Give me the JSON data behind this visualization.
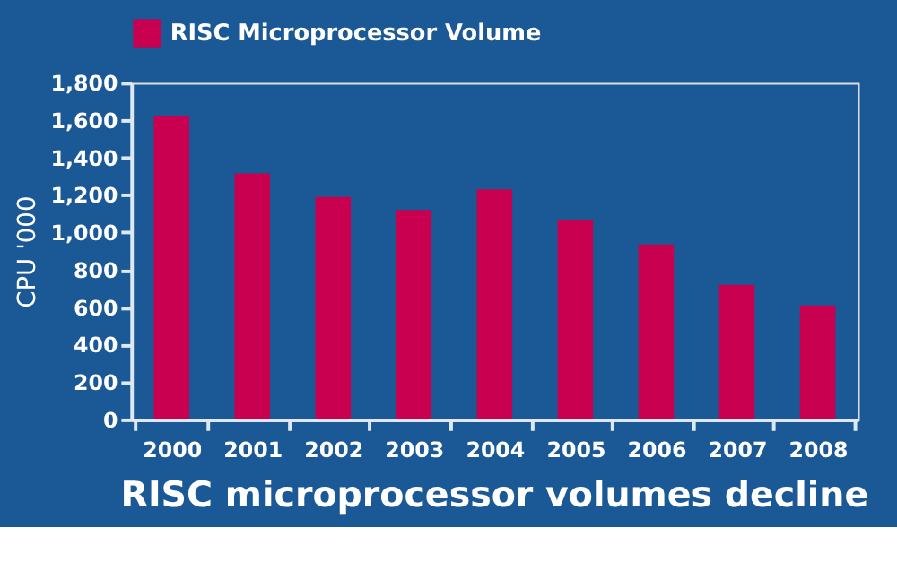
{
  "chart_data": {
    "type": "bar",
    "title": "RISC microprocessor volumes decline",
    "ylabel": "CPU '000",
    "categories": [
      "2000",
      "2001",
      "2002",
      "2003",
      "2004",
      "2005",
      "2006",
      "2007",
      "2008"
    ],
    "series": [
      {
        "name": "RISC Microprocessor Volume",
        "color": "#c8004f",
        "values": [
          1625,
          1315,
          1190,
          1120,
          1230,
          1065,
          935,
          720,
          610
        ]
      }
    ],
    "ylim": [
      0,
      1800
    ],
    "yticks": [
      0,
      {
        "value": 200,
        "label": "200"
      },
      {
        "value": 400,
        "label": "400"
      },
      {
        "value": 600,
        "label": "600"
      },
      {
        "value": 800,
        "label": "800"
      },
      {
        "value": 1000,
        "label": "1,000"
      },
      {
        "value": 1200,
        "label": "1,200"
      },
      {
        "value": 1400,
        "label": "1,400"
      },
      {
        "value": 1600,
        "label": "1,600"
      },
      {
        "value": 1800,
        "label": "1,800"
      }
    ],
    "grid": false,
    "legend": "top"
  }
}
